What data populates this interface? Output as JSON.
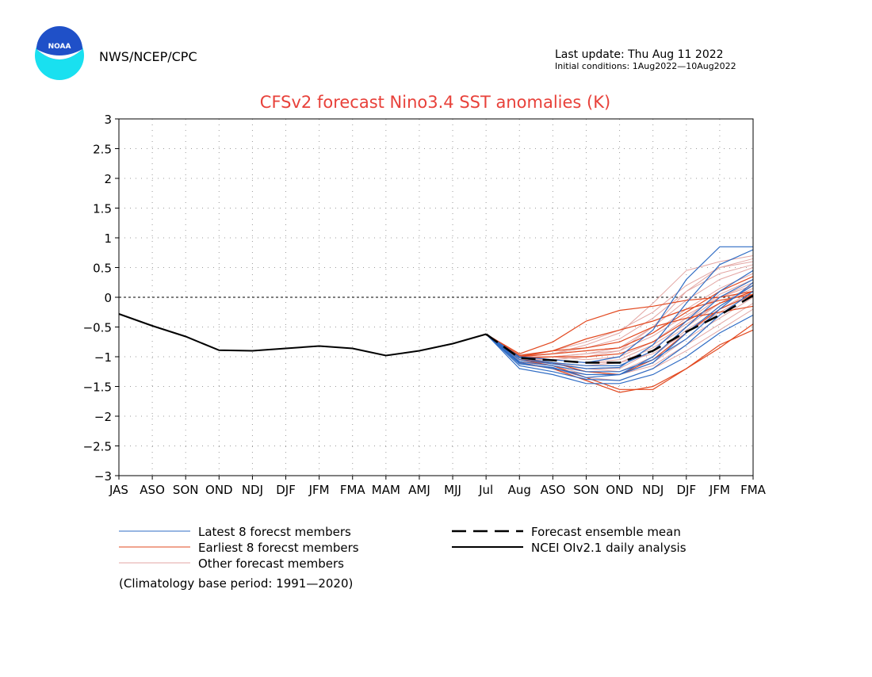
{
  "header": {
    "org": "NWS/NCEP/CPC",
    "logo_text": "NOAA",
    "last_update": "Last update: Thu Aug 11 2022",
    "initial_conditions": "Initial conditions: 1Aug2022—10Aug2022"
  },
  "footnote": "(Climatology base period: 1991—2020)",
  "colors": {
    "title": "#e8413a",
    "latest": "#2f6cc4",
    "earliest": "#e2481f",
    "other": "#e3a6a3",
    "mean": "#000000",
    "analysis": "#000000",
    "logo_blue": "#1f50c8",
    "logo_cyan": "#19e0f0"
  },
  "chart_data": {
    "type": "line",
    "title": "CFSv2 forecast Nino3.4 SST anomalies (K)",
    "xlabel": "",
    "ylabel": "",
    "categories": [
      "JAS",
      "ASO",
      "SON",
      "OND",
      "NDJ",
      "DJF",
      "JFM",
      "FMA",
      "MAM",
      "AMJ",
      "MJJ",
      "Jul",
      "Aug",
      "ASO",
      "SON",
      "OND",
      "NDJ",
      "DJF",
      "JFM",
      "FMA"
    ],
    "ylim": [
      -3,
      3
    ],
    "yticks": [
      3,
      2.5,
      2,
      1.5,
      1,
      0.5,
      0,
      -0.5,
      -1,
      -1.5,
      -2,
      -2.5,
      -3
    ],
    "ytick_labels": [
      "3",
      "2.5",
      "2",
      "1.5",
      "1",
      "0.5",
      "0",
      "−0.5",
      "−1",
      "−1.5",
      "−2",
      "−2.5",
      "−3"
    ],
    "grid": true,
    "zero_line": true,
    "legend": {
      "placement": "bottom",
      "entries": [
        {
          "label": "Latest 8 forecst members",
          "color": "#2f6cc4",
          "style": "thin"
        },
        {
          "label": "Earliest 8 forecst members",
          "color": "#e2481f",
          "style": "thin"
        },
        {
          "label": "Other forecast members",
          "color": "#e3a6a3",
          "style": "thin"
        },
        {
          "label": "Forecast ensemble mean",
          "color": "#000000",
          "style": "dashed"
        },
        {
          "label": "NCEI OIv2.1 daily analysis",
          "color": "#000000",
          "style": "solid"
        }
      ]
    },
    "analysis": {
      "x_index_start": 0,
      "values": [
        -0.28,
        -0.48,
        -0.66,
        -0.89,
        -0.9,
        -0.86,
        -0.82,
        -0.86,
        -0.98,
        -0.9,
        -0.78,
        -0.62
      ]
    },
    "forecast_x_index_start": 11,
    "ensemble_mean": {
      "values": [
        -0.62,
        -1.02,
        -1.06,
        -1.1,
        -1.1,
        -0.9,
        -0.58,
        -0.3,
        0.03
      ]
    },
    "latest_members": [
      [
        -0.62,
        -1.15,
        -1.25,
        -1.38,
        -1.4,
        -1.2,
        -0.8,
        -0.3,
        0.1
      ],
      [
        -0.62,
        -1.1,
        -1.2,
        -1.3,
        -1.3,
        -1.0,
        -0.5,
        0.0,
        0.3
      ],
      [
        -0.62,
        -1.05,
        -1.12,
        -1.2,
        -1.18,
        -0.8,
        -0.1,
        0.55,
        0.8
      ],
      [
        -0.62,
        -1.0,
        -1.05,
        -1.1,
        -1.0,
        -0.55,
        0.3,
        0.85,
        0.85
      ],
      [
        -0.62,
        -1.2,
        -1.3,
        -1.45,
        -1.45,
        -1.3,
        -1.0,
        -0.6,
        -0.3
      ],
      [
        -0.62,
        -1.08,
        -1.15,
        -1.25,
        -1.25,
        -1.05,
        -0.7,
        -0.2,
        0.25
      ],
      [
        -0.62,
        -1.12,
        -1.18,
        -1.35,
        -1.3,
        -1.1,
        -0.6,
        -0.15,
        0.2
      ],
      [
        -0.62,
        -1.02,
        -1.1,
        -1.15,
        -1.15,
        -0.9,
        -0.4,
        0.1,
        0.45
      ]
    ],
    "earliest_members": [
      [
        -0.62,
        -0.95,
        -0.75,
        -0.4,
        -0.22,
        -0.15,
        -0.05,
        0.0,
        0.1
      ],
      [
        -0.62,
        -1.0,
        -0.9,
        -0.7,
        -0.55,
        -0.4,
        -0.2,
        -0.05,
        0.05
      ],
      [
        -0.62,
        -1.05,
        -1.1,
        -1.25,
        -1.3,
        -1.05,
        -0.6,
        -0.2,
        0.05
      ],
      [
        -0.62,
        -1.1,
        -1.2,
        -1.4,
        -1.6,
        -1.5,
        -1.2,
        -0.8,
        -0.55
      ],
      [
        -0.62,
        -1.0,
        -0.95,
        -0.9,
        -0.85,
        -0.6,
        -0.25,
        0.1,
        0.35
      ],
      [
        -0.62,
        -1.05,
        -1.15,
        -1.35,
        -1.55,
        -1.55,
        -1.2,
        -0.85,
        -0.45
      ],
      [
        -0.62,
        -0.98,
        -0.9,
        -0.85,
        -0.75,
        -0.5,
        -0.35,
        -0.25,
        -0.15
      ],
      [
        -0.62,
        -1.02,
        -1.0,
        -1.0,
        -0.95,
        -0.75,
        -0.4,
        -0.1,
        0.1
      ]
    ],
    "other_members": [
      [
        -0.62,
        -1.0,
        -0.95,
        -0.8,
        -0.6,
        -0.1,
        0.45,
        0.6,
        0.7
      ],
      [
        -0.62,
        -1.05,
        -1.05,
        -1.0,
        -0.9,
        -0.5,
        0.1,
        0.5,
        0.6
      ],
      [
        -0.62,
        -1.0,
        -1.0,
        -0.95,
        -0.85,
        -0.5,
        -0.05,
        0.3,
        0.5
      ],
      [
        -0.62,
        -1.05,
        -1.1,
        -1.2,
        -1.2,
        -0.9,
        -0.4,
        0.0,
        0.2
      ],
      [
        -0.62,
        -1.1,
        -1.15,
        -1.25,
        -1.3,
        -1.15,
        -0.8,
        -0.45,
        -0.1
      ],
      [
        -0.62,
        -1.0,
        -0.95,
        -0.9,
        -0.85,
        -0.6,
        -0.2,
        0.15,
        0.4
      ],
      [
        -0.62,
        -1.05,
        -1.1,
        -1.15,
        -1.1,
        -0.85,
        -0.5,
        -0.1,
        0.15
      ],
      [
        -0.62,
        -1.0,
        -1.0,
        -1.05,
        -1.0,
        -0.75,
        -0.35,
        0.05,
        0.3
      ],
      [
        -0.62,
        -1.08,
        -1.15,
        -1.3,
        -1.3,
        -1.1,
        -0.7,
        -0.35,
        0.0
      ],
      [
        -0.62,
        -0.98,
        -0.95,
        -0.85,
        -0.7,
        -0.35,
        0.1,
        0.4,
        0.55
      ],
      [
        -0.62,
        -1.02,
        -1.05,
        -1.1,
        -1.05,
        -0.8,
        -0.45,
        -0.1,
        0.2
      ],
      [
        -0.62,
        -1.12,
        -1.2,
        -1.35,
        -1.4,
        -1.2,
        -0.9,
        -0.55,
        -0.2
      ],
      [
        -0.62,
        -1.05,
        -1.0,
        -0.95,
        -0.9,
        -0.65,
        -0.3,
        0.0,
        0.25
      ],
      [
        -0.62,
        -1.0,
        -1.05,
        -1.1,
        -1.1,
        -0.95,
        -0.6,
        -0.25,
        0.05
      ],
      [
        -0.62,
        -1.1,
        -1.1,
        -1.2,
        -1.25,
        -1.0,
        -0.55,
        -0.2,
        0.1
      ],
      [
        -0.62,
        -0.97,
        -0.9,
        -0.75,
        -0.55,
        -0.25,
        0.2,
        0.5,
        0.65
      ]
    ]
  }
}
